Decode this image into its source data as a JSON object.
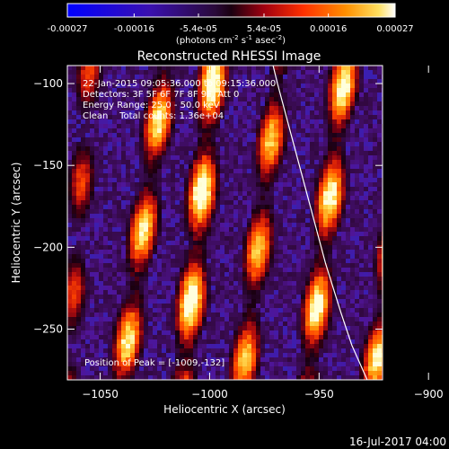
{
  "colorbar": {
    "ticks": [
      "-0.00027",
      "-0.00016",
      "-5.4e-05",
      "5.4e-05",
      "0.00016",
      "0.00027"
    ],
    "tick_values": [
      -0.00027,
      -0.00016,
      -5.4e-05,
      5.4e-05,
      0.00016,
      0.00027
    ],
    "range": [
      -0.00027,
      0.00027
    ],
    "unit_parts": {
      "prefix": "(photons cm",
      "exp1": "-2",
      "mid1": " s",
      "exp2": "-1",
      "mid2": " asec",
      "exp3": "-2",
      "suffix": ")"
    }
  },
  "chart_data": {
    "type": "heatmap",
    "title": "Reconstructed RHESSI Image",
    "xlabel": "Heliocentric X (arcsec)",
    "ylabel": "Heliocentric Y (arcsec)",
    "xlim": [
      -1065,
      -921
    ],
    "ylim": [
      -281,
      -89
    ],
    "x_ticks": [
      -1050,
      -1000,
      -950,
      -900
    ],
    "y_ticks": [
      -100,
      -150,
      -200,
      -250
    ],
    "annotations": [
      "22-Jan-2015 09:05:36.000 to 09:15:36.000",
      "Detectors: 3F 5F 6F 7F 8F 9F, Att 0",
      "Energy Range: 25.0 - 50.0 keV",
      "Clean    Total counts: 1.36e+04",
      "Position of Peak = [-1009,-132]"
    ],
    "peak_position": [
      -1009,
      -132
    ],
    "total_counts": 13600,
    "energy_range_kev": [
      25.0,
      50.0
    ],
    "limb_curve_x": [
      -971,
      -969,
      -963,
      -955,
      -947,
      -940,
      -935,
      -930,
      -928
    ],
    "limb_curve_y": [
      -89,
      -100,
      -130,
      -170,
      -210,
      -240,
      -260,
      -275,
      -281
    ],
    "stripe_centers": [
      {
        "x_top": -1020,
        "x_bottom": -1040,
        "peak": 0.85
      },
      {
        "x_top": -998,
        "x_bottom": -1012,
        "peak": 0.95
      },
      {
        "x_top": -968,
        "x_bottom": -985,
        "peak": 0.8
      },
      {
        "x_top": -938,
        "x_bottom": -955,
        "peak": 0.9
      },
      {
        "x_top": -905,
        "x_bottom": -925,
        "peak": 0.85
      },
      {
        "x_top": -1055,
        "x_bottom": -1065,
        "peak": 0.6
      }
    ]
  },
  "footer": {
    "date": "16-Jul-2017 04:00"
  }
}
